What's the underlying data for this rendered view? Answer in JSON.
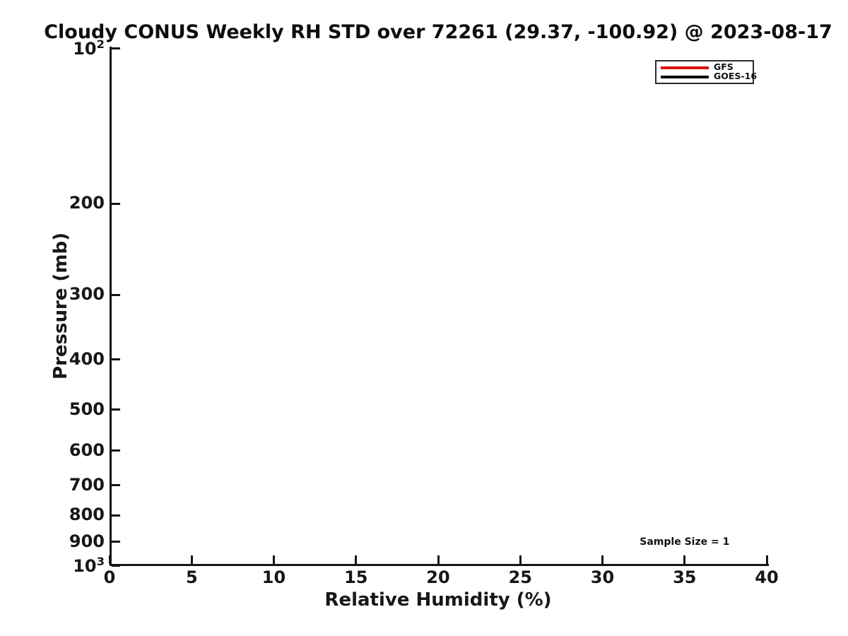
{
  "chart_data": {
    "type": "line",
    "title": "Cloudy CONUS Weekly RH STD over 72261 (29.37, -100.92) @ 2023-08-17",
    "xlabel": "Relative Humidity (%)",
    "ylabel": "Pressure (mb)",
    "xlim": [
      0,
      40
    ],
    "ylim": [
      100,
      1000
    ],
    "y_scale": "log",
    "y_inverted": true,
    "grid": false,
    "x_ticks": [
      {
        "value": 0,
        "label": "0"
      },
      {
        "value": 5,
        "label": "5"
      },
      {
        "value": 10,
        "label": "10"
      },
      {
        "value": 15,
        "label": "15"
      },
      {
        "value": 20,
        "label": "20"
      },
      {
        "value": 25,
        "label": "25"
      },
      {
        "value": 30,
        "label": "30"
      },
      {
        "value": 35,
        "label": "35"
      },
      {
        "value": 40,
        "label": "40"
      }
    ],
    "y_ticks": [
      {
        "value": 100,
        "label": "10^2"
      },
      {
        "value": 200,
        "label": "200"
      },
      {
        "value": 300,
        "label": "300"
      },
      {
        "value": 400,
        "label": "400"
      },
      {
        "value": 500,
        "label": "500"
      },
      {
        "value": 600,
        "label": "600"
      },
      {
        "value": 700,
        "label": "700"
      },
      {
        "value": 800,
        "label": "800"
      },
      {
        "value": 900,
        "label": "900"
      },
      {
        "value": 1000,
        "label": "10^3"
      }
    ],
    "legend": {
      "position": "upper right",
      "entries": [
        {
          "name": "GFS",
          "color": "#dd1414"
        },
        {
          "name": "GOES-16",
          "color": "#0c0c0c"
        }
      ]
    },
    "series": [
      {
        "name": "GFS",
        "color": "#dd1414",
        "x": [],
        "y": []
      },
      {
        "name": "GOES-16",
        "color": "#0c0c0c",
        "x": [],
        "y": []
      }
    ],
    "annotations": [
      {
        "text": "Sample Size = 1",
        "x": 35,
        "y": 900
      }
    ],
    "axis_color": "#151515",
    "text_color": "#111111"
  }
}
